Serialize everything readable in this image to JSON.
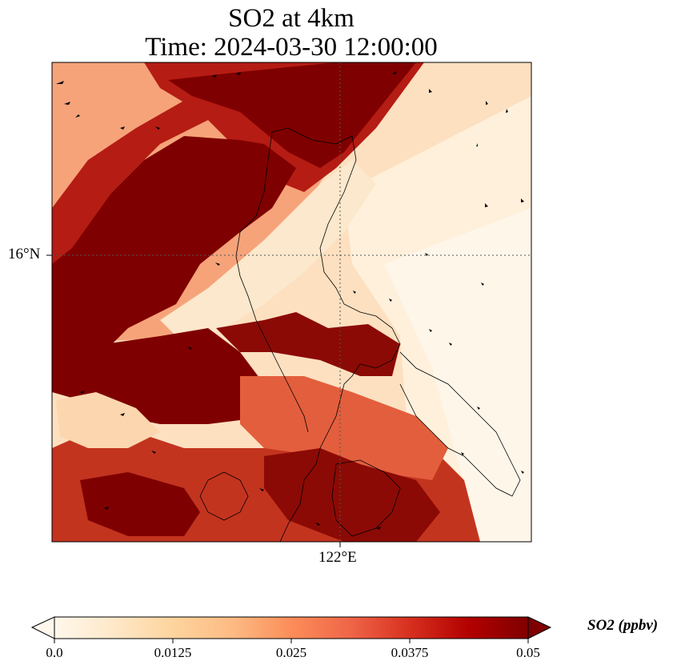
{
  "title": {
    "line1": "SO2 at 4km",
    "line2": "Time: 2024-03-30 12:00:00"
  },
  "map": {
    "lat_tick": "16°N",
    "lon_tick": "122°E",
    "gridlines": "dotted",
    "wind_vectors": "black arrows",
    "coastlines": "black thin lines"
  },
  "colorbar": {
    "label": "SO2 (ppbv)",
    "ticks": [
      "0.0",
      "0.0125",
      "0.025",
      "0.0375",
      "0.05"
    ],
    "range": [
      0.0,
      0.05
    ],
    "extend": "both",
    "colormap": "OrRd",
    "colors": [
      "#fff7ec",
      "#fee8c8",
      "#fdd49e",
      "#fdbb84",
      "#fc8d59",
      "#ef6548",
      "#d7301f",
      "#b30000",
      "#7f0000"
    ]
  }
}
